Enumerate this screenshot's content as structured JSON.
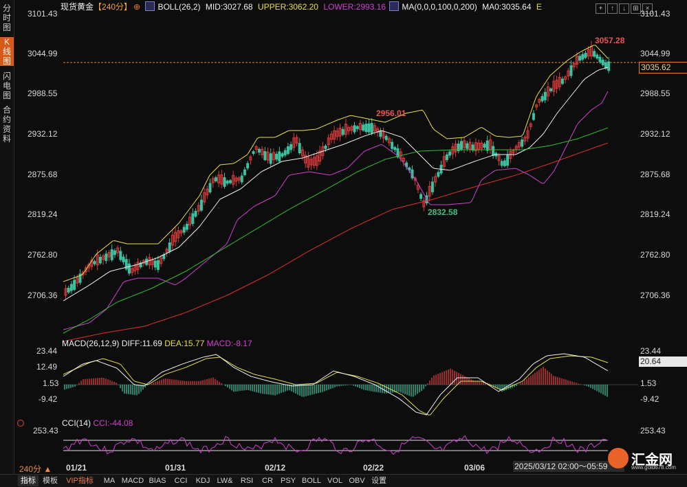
{
  "left_tabs": [
    {
      "label": "分时图",
      "active": false
    },
    {
      "label": "K线图",
      "active": true
    },
    {
      "label": "闪电图",
      "active": false
    },
    {
      "label": "合约资料",
      "active": false
    }
  ],
  "header": {
    "instrument": "现货黄金",
    "period": "【240分】",
    "boll": "BOLL(26,2)",
    "mid": "MID:3027.68",
    "upper": "UPPER:3062.20",
    "lower": "LOWER:2993.16",
    "ma": "MA(0,0,0,100,0,200)",
    "ma0": "MA0:3035.64"
  },
  "toolbar_buttons": [
    "cross",
    "zoom-in",
    "zoom-out",
    "fit",
    "close"
  ],
  "main_axis": [
    "3101.43",
    "3044.99",
    "2988.55",
    "2932.12",
    "2875.68",
    "2819.24",
    "2762.80",
    "2706.36"
  ],
  "current_price": "3035.62",
  "annotations": {
    "high": "3057.28",
    "mid_high": "2956.01",
    "low": "2832.58"
  },
  "macd": {
    "label": "MACD(26,12,9)",
    "diff": "DIFF:11.69",
    "dea": "DEA:15.77",
    "macd": "MACD:-8.17",
    "axis": [
      "23.44",
      "12.49",
      "1.53",
      "-9.42"
    ],
    "current": "20.64"
  },
  "cci": {
    "label": "CCI(14)",
    "value": "CCI:-44.08",
    "axis": [
      "253.43"
    ]
  },
  "dates": [
    "01/21",
    "01/31",
    "02/12",
    "02/22",
    "03/06"
  ],
  "period_label": "240分 ▲",
  "time_range": "2025/03/12 02:00～05:59",
  "bottom_tabs": [
    {
      "label": "指标",
      "active": true
    },
    {
      "label": "模板",
      "active": false
    },
    {
      "label": "VIP指标",
      "vip": true
    },
    {
      "label": "MA"
    },
    {
      "label": "MACD"
    },
    {
      "label": "BIAS"
    },
    {
      "label": "CCI"
    },
    {
      "label": "KDJ"
    },
    {
      "label": "LW&"
    },
    {
      "label": "RSI"
    },
    {
      "label": "CR"
    },
    {
      "label": "PSY"
    },
    {
      "label": "BOLL"
    },
    {
      "label": "VOL"
    },
    {
      "label": "OBV"
    },
    {
      "label": "设置"
    }
  ],
  "logo": {
    "text": "汇金网",
    "url": "www.gold678.com"
  },
  "colors": {
    "upper": "#e8e04a",
    "mid": "#f0f0f0",
    "lower": "#d040d0",
    "ma100": "#30c030",
    "ma200": "#e03030",
    "bull": "#e03c3c",
    "bear": "#3cc0a0",
    "accent": "#d85a18"
  }
}
